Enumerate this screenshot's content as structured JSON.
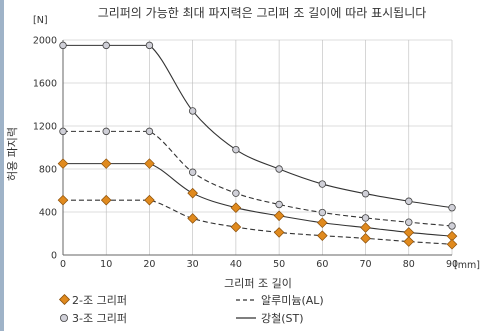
{
  "chart_data": {
    "type": "line",
    "title": "그리퍼의 가능한 최대 파지력은 그리퍼 조 길이에 따라 표시됩니다",
    "xlabel": "그리퍼 조 길이",
    "ylabel": "허용 파지력",
    "x_unit": "[mm]",
    "y_unit": "[N]",
    "xlim": [
      0,
      90
    ],
    "ylim": [
      0,
      2000
    ],
    "x_ticks": [
      0,
      10,
      20,
      30,
      40,
      50,
      60,
      70,
      80,
      90
    ],
    "y_ticks": [
      0,
      400,
      800,
      1200,
      1600,
      2000
    ],
    "grid": true,
    "legend_position": "bottom",
    "series": [
      {
        "id": "3jaw_st",
        "values": [
          1950,
          1950,
          1950,
          1340,
          980,
          800,
          660,
          570,
          500,
          440
        ]
      },
      {
        "id": "3jaw_al",
        "values": [
          1150,
          1150,
          1150,
          770,
          575,
          470,
          395,
          345,
          305,
          270
        ]
      },
      {
        "id": "2jaw_st",
        "values": [
          850,
          850,
          850,
          575,
          440,
          365,
          300,
          255,
          210,
          175
        ]
      },
      {
        "id": "2jaw_al",
        "values": [
          510,
          510,
          510,
          340,
          260,
          210,
          180,
          155,
          125,
          100
        ]
      }
    ],
    "legend": {
      "jaw2": "2-조 그리퍼",
      "jaw3": "3-조 그리퍼",
      "al": "알루미늄(AL)",
      "st": "강철(ST)"
    },
    "colors": {
      "jaw2_marker": "#e08a1e",
      "jaw3_marker": "#d0d0d8",
      "line": "#333333",
      "grid": "#bbbbbb"
    }
  }
}
